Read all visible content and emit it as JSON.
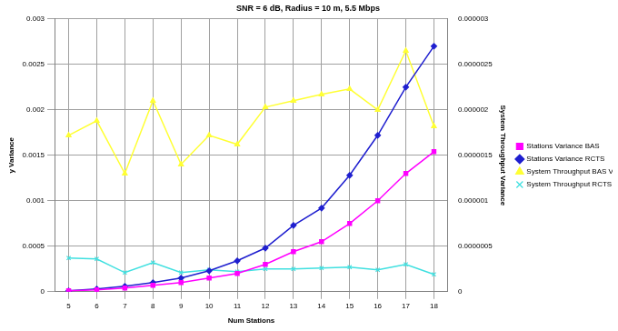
{
  "chart_data": {
    "type": "line",
    "title": "SNR = 6 dB, Radius = 10 m, 5.5 Mbps",
    "x_label": "Num Stations",
    "y_label": "y Variance",
    "y2_label": "System Throughput Variance",
    "categories": [
      "5",
      "6",
      "7",
      "8",
      "9",
      "10",
      "11",
      "12",
      "13",
      "14",
      "15",
      "16",
      "17",
      "18"
    ],
    "ylim": [
      0,
      0.003
    ],
    "yticks": [
      0,
      0.0005,
      0.001,
      0.0015,
      0.002,
      0.0025,
      0.003
    ],
    "y2lim": [
      0,
      3e-06
    ],
    "y2ticks": [
      {
        "value": 0,
        "label": "0"
      },
      {
        "value": 5e-07,
        "label": "0.0000005"
      },
      {
        "value": 1e-06,
        "label": "0.000001"
      },
      {
        "value": 1.5e-06,
        "label": "0.0000015"
      },
      {
        "value": 2e-06,
        "label": "0.000002"
      },
      {
        "value": 2.5e-06,
        "label": "0.0000025"
      },
      {
        "value": 3e-06,
        "label": "0.000003"
      }
    ],
    "grid": true,
    "legend": "right",
    "series": [
      {
        "name": "Stations Variance BAS",
        "color": "#ff00ff",
        "marker": "square",
        "values": [
          1e-05,
          2e-05,
          4e-05,
          7e-05,
          0.0001,
          0.00015,
          0.0002,
          0.0003,
          0.00044,
          0.00055,
          0.00075,
          0.001,
          0.0013,
          0.00154
        ]
      },
      {
        "name": "Stations Variance RCTS",
        "color": "#1f1fcf",
        "marker": "diamond",
        "values": [
          1e-05,
          3e-05,
          6e-05,
          0.0001,
          0.00015,
          0.00023,
          0.00034,
          0.00048,
          0.00073,
          0.00092,
          0.00128,
          0.00172,
          0.00225,
          0.0027
        ]
      },
      {
        "name": "System Throughput BAS Variance",
        "color": "#ffff33",
        "marker": "triangle",
        "axis": "y2",
        "values": [
          1.72e-06,
          1.88e-06,
          1.3e-06,
          2.1e-06,
          1.4e-06,
          1.72e-06,
          1.62e-06,
          2.03e-06,
          2.1e-06,
          2.17e-06,
          2.23e-06,
          2e-06,
          2.65e-06,
          1.82e-06
        ]
      },
      {
        "name": "System Throughput RCTS Variance",
        "color": "#40e0e0",
        "marker": "x",
        "axis": "y2",
        "values": [
          3.7e-07,
          3.6e-07,
          2.1e-07,
          3.2e-07,
          2.1e-07,
          2.4e-07,
          2.2e-07,
          2.5e-07,
          2.5e-07,
          2.6e-07,
          2.7e-07,
          2.4e-07,
          3e-07,
          1.9e-07
        ]
      }
    ]
  }
}
